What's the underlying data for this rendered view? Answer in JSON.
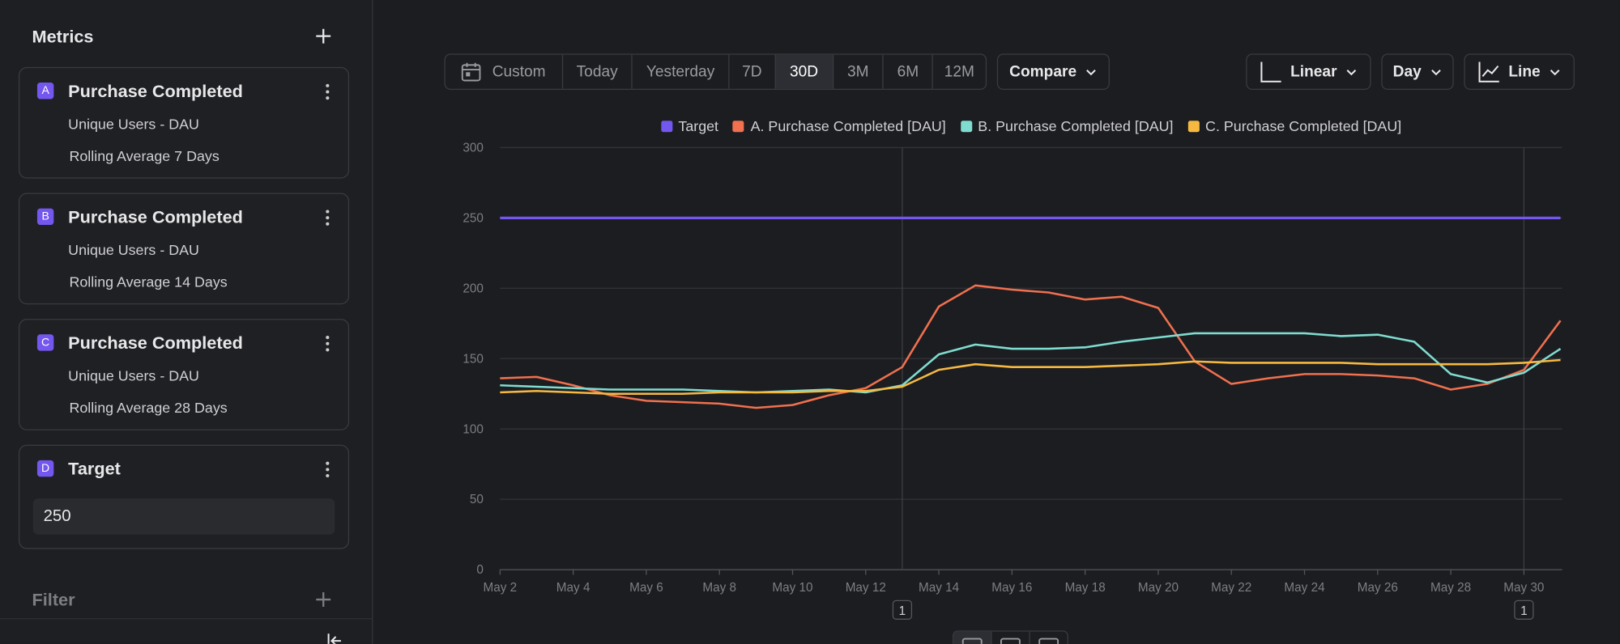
{
  "sidebar": {
    "title": "Metrics",
    "metrics": [
      {
        "letter": "A",
        "name": "Purchase Completed",
        "details": [
          "Unique Users - DAU",
          "Rolling Average 7 Days"
        ]
      },
      {
        "letter": "B",
        "name": "Purchase Completed",
        "details": [
          "Unique Users - DAU",
          "Rolling Average 14 Days"
        ]
      },
      {
        "letter": "C",
        "name": "Purchase Completed",
        "details": [
          "Unique Users - DAU",
          "Rolling Average 28 Days"
        ]
      }
    ],
    "target": {
      "letter": "D",
      "name": "Target",
      "value": "250"
    },
    "filter": "Filter"
  },
  "toolbar": {
    "ranges": [
      "Custom",
      "Today",
      "Yesterday",
      "7D",
      "30D",
      "3M",
      "6M",
      "12M"
    ],
    "selected": "30D",
    "compare": "Compare",
    "scale": "Linear",
    "interval": "Day",
    "chart_type": "Line"
  },
  "chart_data": {
    "type": "line",
    "categories": [
      "May 2",
      null,
      "May 4",
      null,
      "May 6",
      null,
      "May 8",
      null,
      "May 10",
      null,
      "May 12",
      null,
      "May 14",
      null,
      "May 16",
      null,
      "May 18",
      null,
      "May 20",
      null,
      "May 22",
      null,
      "May 24",
      null,
      "May 26",
      null,
      "May 28",
      null,
      "May 30",
      null
    ],
    "series": [
      {
        "name": "Target",
        "color": "#7357ee",
        "values": [
          250,
          250,
          250,
          250,
          250,
          250,
          250,
          250,
          250,
          250,
          250,
          250,
          250,
          250,
          250,
          250,
          250,
          250,
          250,
          250,
          250,
          250,
          250,
          250,
          250,
          250,
          250,
          250,
          250,
          250
        ]
      },
      {
        "name": "A. Purchase Completed [DAU]",
        "color": "#f0704f",
        "values": [
          136,
          137,
          131,
          124,
          120,
          119,
          118,
          115,
          117,
          124,
          129,
          144,
          187,
          202,
          199,
          197,
          192,
          194,
          186,
          148,
          132,
          136,
          139,
          139,
          138,
          136,
          128,
          132,
          142,
          177
        ]
      },
      {
        "name": "B. Purchase Completed [DAU]",
        "color": "#7fdcd0",
        "values": [
          131,
          130,
          129,
          128,
          128,
          128,
          127,
          126,
          127,
          128,
          126,
          131,
          153,
          160,
          157,
          157,
          158,
          162,
          165,
          168,
          168,
          168,
          168,
          166,
          167,
          162,
          139,
          133,
          140,
          157
        ]
      },
      {
        "name": "C. Purchase Completed [DAU]",
        "color": "#f5b942",
        "values": [
          126,
          127,
          126,
          125,
          125,
          125,
          126,
          126,
          126,
          127,
          127,
          130,
          142,
          146,
          144,
          144,
          144,
          145,
          146,
          148,
          147,
          147,
          147,
          147,
          146,
          146,
          146,
          146,
          147,
          149
        ]
      }
    ],
    "ylim": [
      0,
      300
    ],
    "yticks": [
      0,
      50,
      100,
      150,
      200,
      250,
      300
    ],
    "grid": true,
    "legend": "top",
    "annotations": [
      {
        "index": 11,
        "label": "1"
      },
      {
        "index": 28,
        "label": "1"
      }
    ]
  }
}
